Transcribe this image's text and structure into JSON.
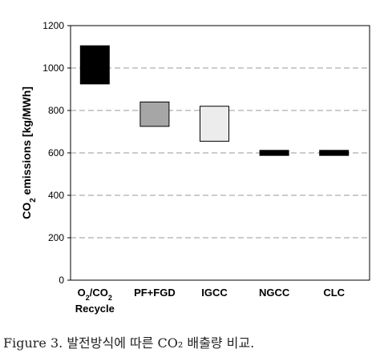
{
  "chart_data": {
    "type": "floating-bar",
    "ylabel_main": "CO",
    "ylabel_sub": "2",
    "ylabel_rest": " emissions [kg/MWh]",
    "ylim": [
      0,
      1200
    ],
    "yticks": [
      0,
      200,
      400,
      600,
      800,
      1000,
      1200
    ],
    "grid": "dashed horizontal",
    "categories": [
      {
        "label_parts": [
          [
            "O",
            ""
          ],
          [
            "2",
            "sub"
          ],
          [
            "/CO",
            ""
          ],
          [
            "2",
            "sub"
          ]
        ],
        "label_line2": "Recycle",
        "low": 925,
        "high": 1105,
        "color": "#000000"
      },
      {
        "label_parts": [
          [
            "PF+FGD",
            ""
          ]
        ],
        "label_line2": "",
        "low": 725,
        "high": 840,
        "color": "#a6a6a6"
      },
      {
        "label_parts": [
          [
            "IGCC",
            ""
          ]
        ],
        "label_line2": "",
        "low": 655,
        "high": 820,
        "color": "#ececec"
      },
      {
        "label_parts": [
          [
            "NGCC",
            ""
          ]
        ],
        "label_line2": "",
        "low": 588,
        "high": 612,
        "color": "#000000"
      },
      {
        "label_parts": [
          [
            "CLC",
            ""
          ]
        ],
        "label_line2": "",
        "low": 588,
        "high": 612,
        "color": "#000000"
      }
    ]
  },
  "caption": "Figure 3. 발전방식에 따른 CO₂ 배출량 비교."
}
